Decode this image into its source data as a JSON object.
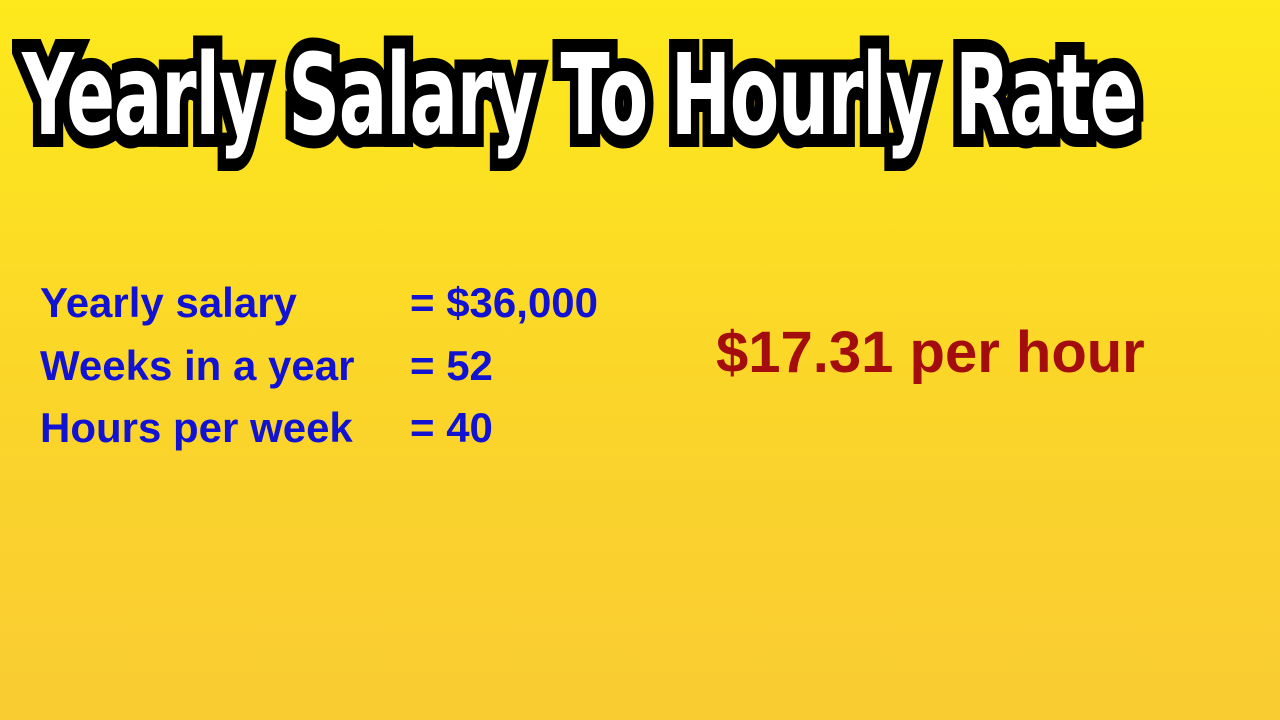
{
  "title": "Yearly Salary To Hourly Rate",
  "inputs": [
    {
      "label": "Yearly salary",
      "value": "= $36,000"
    },
    {
      "label": "Weeks in a year",
      "value": "= 52"
    },
    {
      "label": "Hours per week",
      "value": "= 40"
    }
  ],
  "result": "$17.31 per hour",
  "colors": {
    "background": "#fbd52a",
    "input_text": "#1212d2",
    "result_text": "#a30d0d",
    "title_fill": "#ffffff",
    "title_outline": "#000000"
  }
}
